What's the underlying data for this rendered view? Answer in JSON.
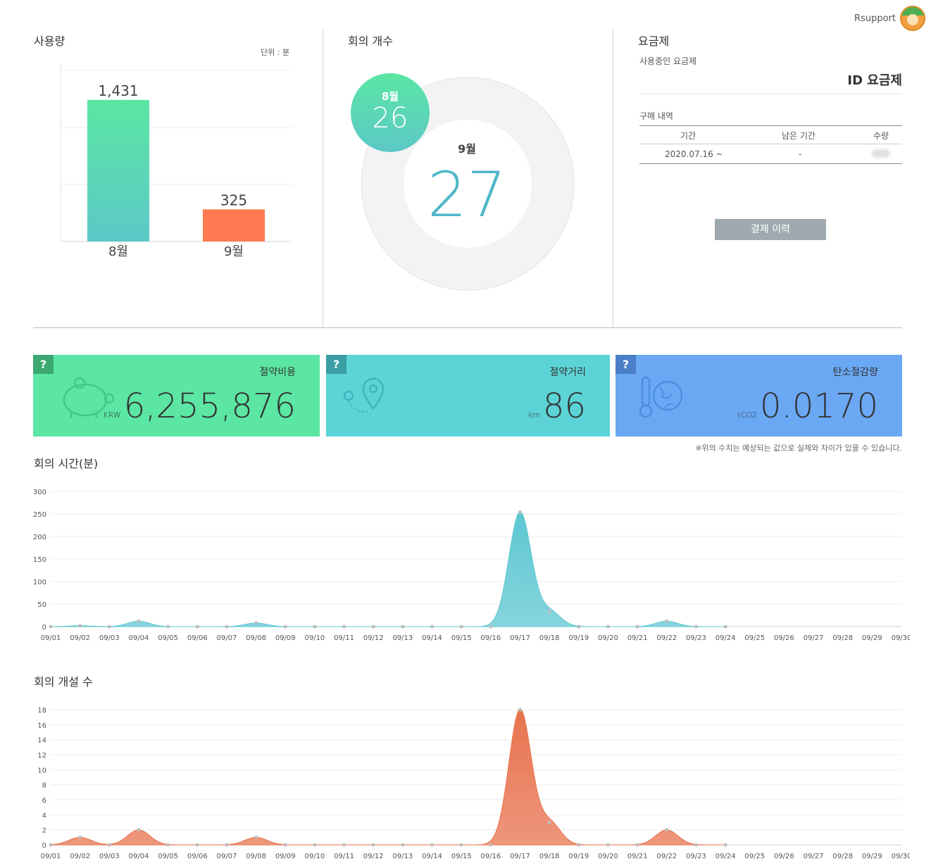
{
  "header": {
    "user_name": "Rsupport"
  },
  "usage": {
    "title": "사용량",
    "unit_label": "단위 : 분",
    "chart_data": {
      "type": "bar",
      "categories": [
        "8월",
        "9월"
      ],
      "values": [
        1431,
        325
      ],
      "value_labels": [
        "1,431",
        "325"
      ],
      "ylim": [
        0,
        1800
      ],
      "colors": [
        "#5ec7c7",
        "#ff7a50"
      ]
    }
  },
  "meetings": {
    "title": "회의 개수",
    "prev_month": "8월",
    "prev_count": "26",
    "cur_month": "9월",
    "cur_count": "27"
  },
  "plan": {
    "title": "요금제",
    "current_label": "사용중인 요금제",
    "current_value": "ID 요금제",
    "history_label": "구매 내역",
    "columns": [
      "기간",
      "남은 기간",
      "수량"
    ],
    "rows": [
      {
        "period": "2020.07.16 ~",
        "remaining": "-",
        "quantity": ""
      }
    ],
    "payment_button": "결제 이력"
  },
  "stats": [
    {
      "label": "절약비용",
      "unit": "KRW",
      "value": "6,255,876",
      "color": "#5be6a3",
      "icon": "piggy-bank-icon"
    },
    {
      "label": "절약거리",
      "unit": "km",
      "value": "86",
      "color": "#5cd3d6",
      "icon": "location-pin-icon"
    },
    {
      "label": "탄소절감량",
      "unit": "tCO2",
      "value": "0.0170",
      "color": "#6aa8f4",
      "icon": "thermometer-globe-icon"
    }
  ],
  "disclaimer": "※위의 수치는 예상되는 값으로 실제와 차이가 있을 수 있습니다.",
  "time_chart": {
    "title": "회의 시간(분)",
    "chart_data": {
      "type": "area",
      "x": [
        "09/01",
        "09/02",
        "09/03",
        "09/04",
        "09/05",
        "09/06",
        "09/07",
        "09/08",
        "09/09",
        "09/10",
        "09/11",
        "09/12",
        "09/13",
        "09/14",
        "09/15",
        "09/16",
        "09/17",
        "09/18",
        "09/19",
        "09/20",
        "09/21",
        "09/22",
        "09/23",
        "09/24",
        "09/25",
        "09/26",
        "09/27",
        "09/28",
        "09/29",
        "09/30"
      ],
      "values": [
        0,
        2,
        0,
        12,
        0,
        0,
        0,
        8,
        0,
        0,
        0,
        0,
        0,
        0,
        0,
        0,
        254,
        34,
        0,
        0,
        0,
        12,
        0,
        0,
        null,
        null,
        null,
        null,
        null,
        null
      ],
      "yticks": [
        "0",
        "50",
        "100",
        "150",
        "200",
        "250",
        "300"
      ],
      "ylim": [
        0,
        300
      ],
      "color": "#5ec7d2"
    }
  },
  "count_chart": {
    "title": "회의 개설 수",
    "chart_data": {
      "type": "area",
      "x": [
        "09/01",
        "09/02",
        "09/03",
        "09/04",
        "09/05",
        "09/06",
        "09/07",
        "09/08",
        "09/09",
        "09/10",
        "09/11",
        "09/12",
        "09/13",
        "09/14",
        "09/15",
        "09/16",
        "09/17",
        "09/18",
        "09/19",
        "09/20",
        "09/21",
        "09/22",
        "09/23",
        "09/24",
        "09/25",
        "09/26",
        "09/27",
        "09/28",
        "09/29",
        "09/30"
      ],
      "values": [
        0,
        1,
        0,
        2,
        0,
        0,
        0,
        1,
        0,
        0,
        0,
        0,
        0,
        0,
        0,
        0,
        18,
        3,
        0,
        0,
        0,
        2,
        0,
        0,
        null,
        null,
        null,
        null,
        null,
        null
      ],
      "yticks": [
        "0",
        "2",
        "4",
        "6",
        "8",
        "10",
        "12",
        "14",
        "16",
        "18"
      ],
      "ylim": [
        0,
        18
      ],
      "color": "#e8734f"
    }
  }
}
